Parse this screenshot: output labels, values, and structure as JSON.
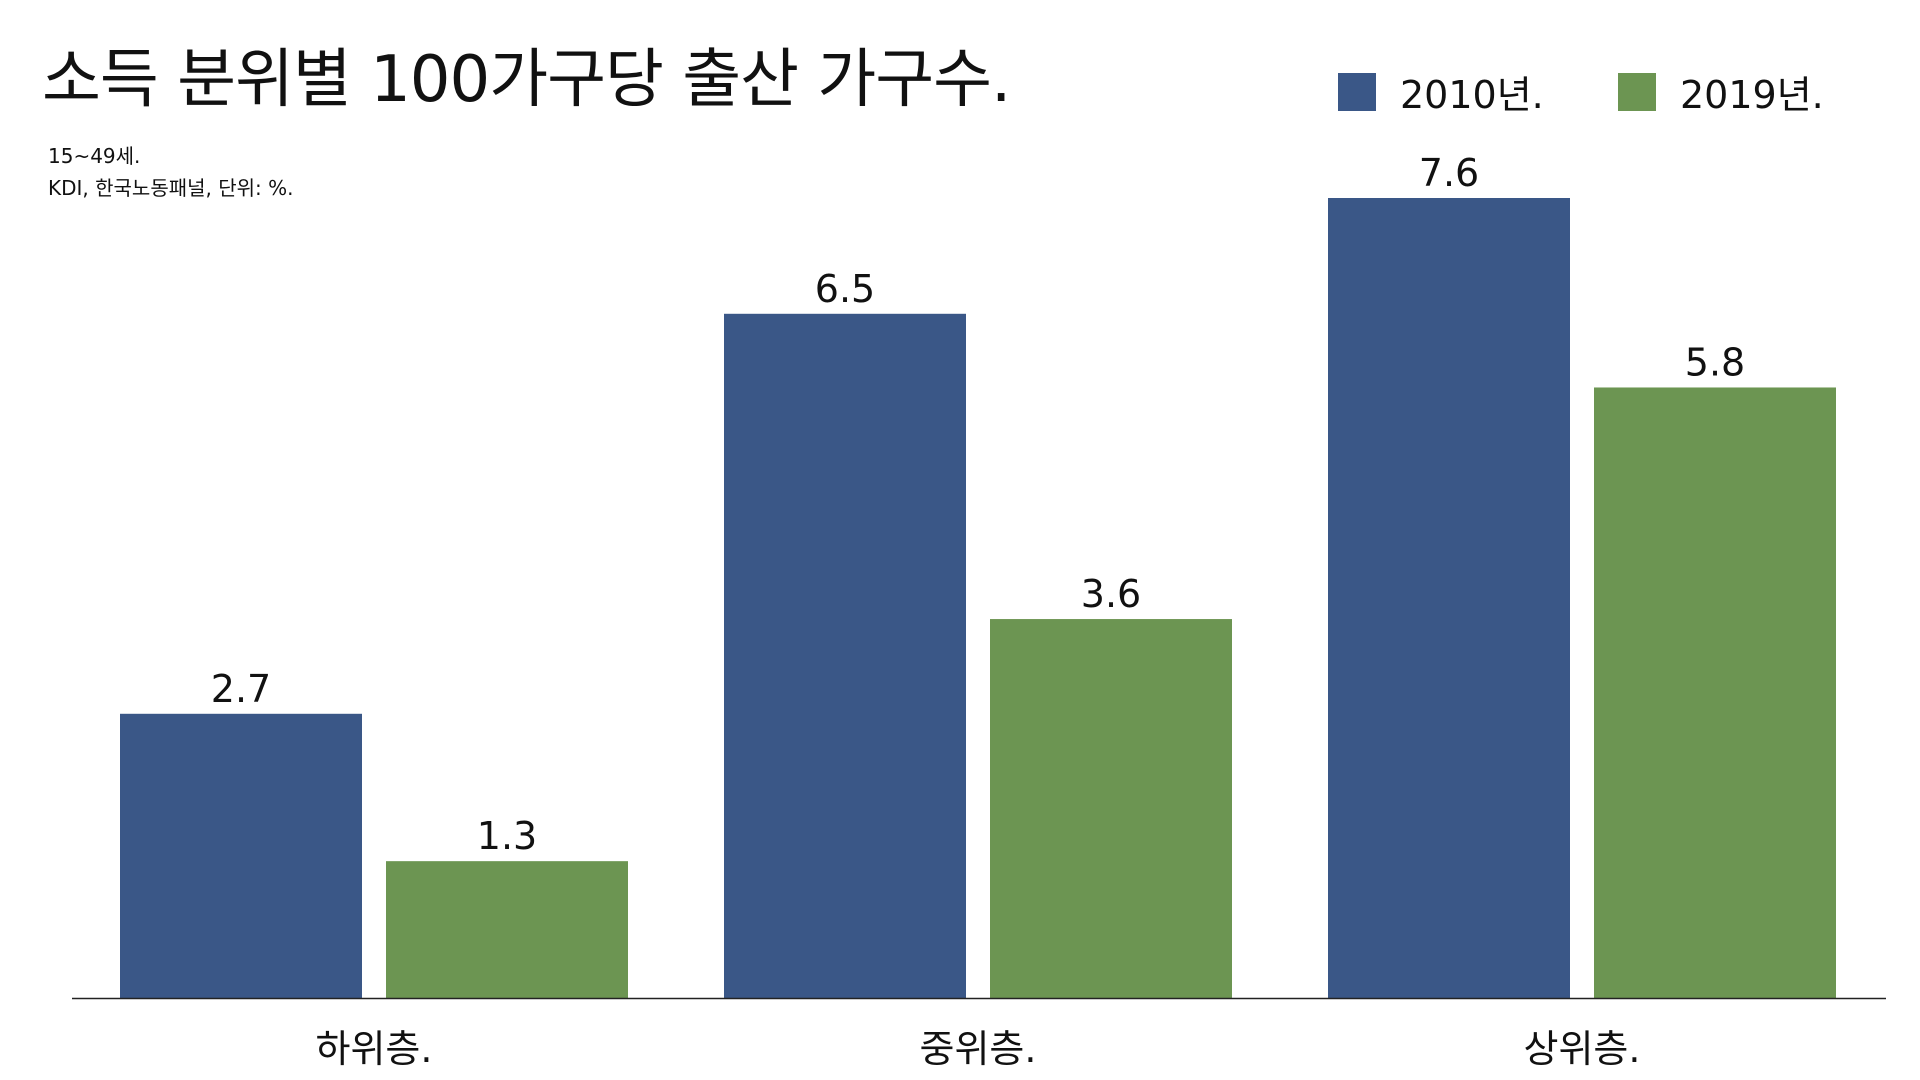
{
  "chart_data": {
    "type": "bar",
    "title": "소득 분위별 100가구당 출산 가구수.",
    "notes": [
      "15~49세.",
      "KDI, 한국노동패널, 단위: %."
    ],
    "categories": [
      "하위층.",
      "중위층.",
      "상위층."
    ],
    "series": [
      {
        "name": "2010년.",
        "values": [
          2.7,
          6.5,
          7.6
        ],
        "color": "#3a5787"
      },
      {
        "name": "2019년.",
        "values": [
          1.3,
          3.6,
          5.8
        ],
        "color": "#6c9552"
      }
    ],
    "xlabel": "",
    "ylabel": "",
    "ylim": [
      0,
      7.6
    ],
    "grid": false,
    "legend_position": "top-right",
    "data_labels": true
  }
}
